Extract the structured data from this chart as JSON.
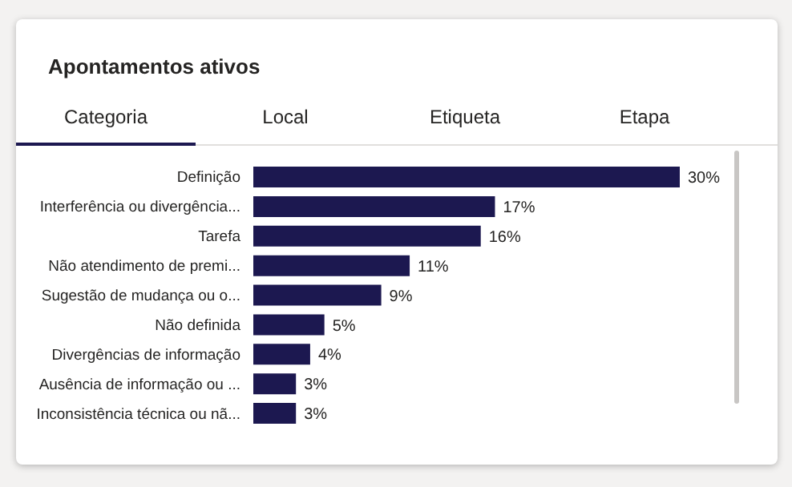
{
  "chart_data": {
    "type": "bar",
    "orientation": "horizontal",
    "title": "Apontamentos ativos",
    "annotations": [
      "Categoria",
      "Local",
      "Etiqueta",
      "Etapa"
    ],
    "categories": [
      "Definição",
      "Interferência ou divergência...",
      "Tarefa",
      "Não atendimento de premi...",
      "Sugestão de mudança ou o...",
      "Não definida",
      "Divergências de informação",
      "Ausência de informação ou ...",
      "Inconsistência técnica ou nã..."
    ],
    "values": [
      30,
      17,
      16,
      11,
      9,
      5,
      4,
      3,
      3
    ],
    "value_labels": [
      "30%",
      "17%",
      "16%",
      "11%",
      "9%",
      "5%",
      "4%",
      "3%",
      "3%"
    ],
    "color": "#1c1850"
  }
}
